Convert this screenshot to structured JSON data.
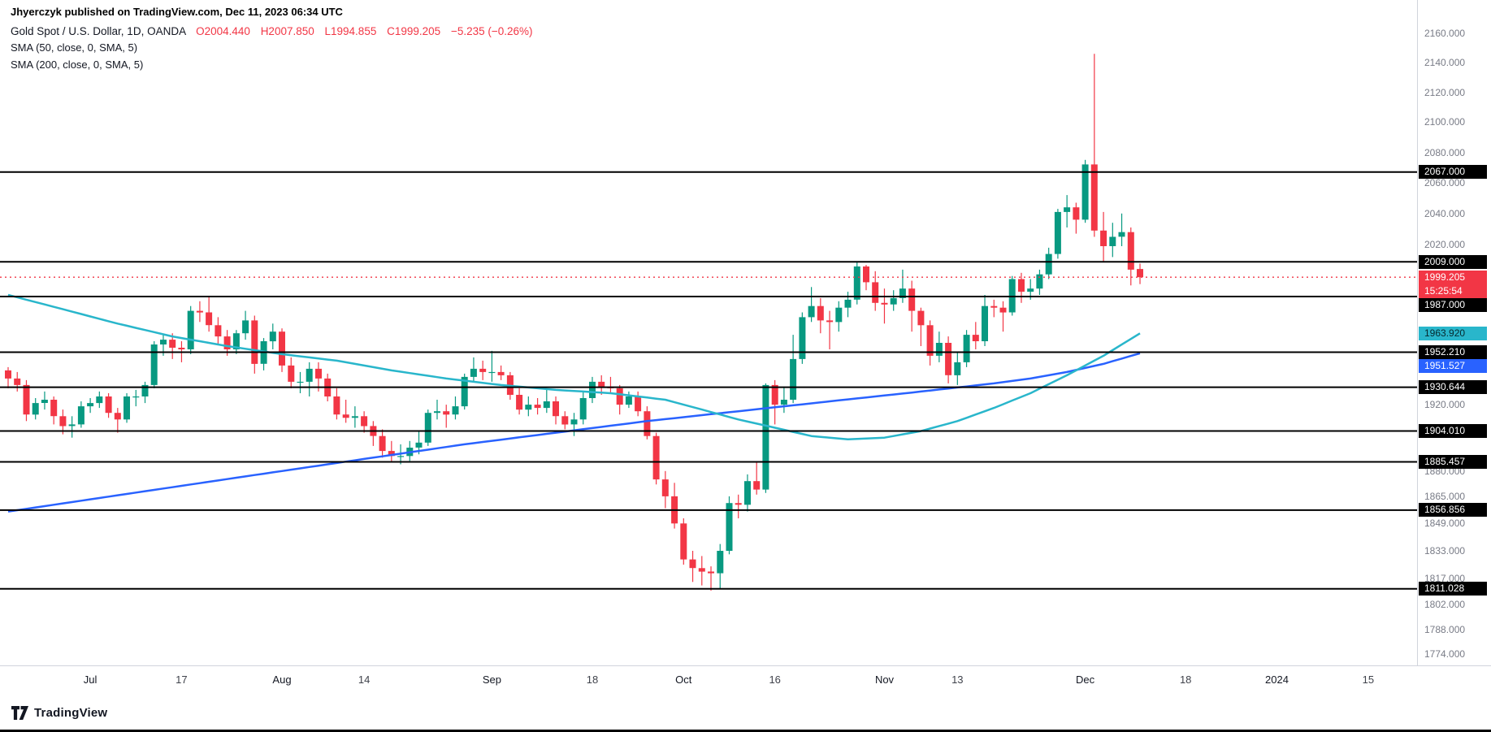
{
  "header": {
    "attribution": "Jhyerczyk published on TradingView.com, Dec 11, 2023 06:34 UTC",
    "symbol_title": "Gold Spot / U.S. Dollar, 1D, OANDA",
    "ohlc": {
      "open": "O2004.440",
      "high": "H2007.850",
      "low": "L1994.855",
      "close": "C1999.205",
      "change": "−5.235 (−0.26%)"
    },
    "indicators": [
      "SMA (50, close, 0, SMA, 5)",
      "SMA (200, close, 0, SMA, 5)"
    ]
  },
  "footer": {
    "brand": "TradingView"
  },
  "chart_data": {
    "type": "candlestick",
    "symbol": "Gold Spot / U.S. Dollar",
    "interval": "1D",
    "exchange": "OANDA",
    "colors": {
      "up": "#089981",
      "down": "#f23645",
      "level": "#000000",
      "current": "#f23645",
      "sma50": "#29b6cb",
      "sma200": "#2962ff",
      "axis_text": "#787b86"
    },
    "y_axis": {
      "scale": "log",
      "top_price": 2160,
      "bottom_price": 1774,
      "ticks": [
        "2160.000",
        "2140.000",
        "2120.000",
        "2100.000",
        "2080.000",
        "2060.000",
        "2040.000",
        "2020.000",
        "1920.000",
        "1880.000",
        "1865.000",
        "1849.000",
        "1833.000",
        "1817.000",
        "1802.000",
        "1788.000",
        "1774.000"
      ]
    },
    "x_axis": {
      "labels": [
        {
          "text": "Jul",
          "index": 9,
          "major": true
        },
        {
          "text": "17",
          "index": 19,
          "major": false
        },
        {
          "text": "Aug",
          "index": 30,
          "major": true
        },
        {
          "text": "14",
          "index": 39,
          "major": false
        },
        {
          "text": "Sep",
          "index": 53,
          "major": true
        },
        {
          "text": "18",
          "index": 64,
          "major": false
        },
        {
          "text": "Oct",
          "index": 74,
          "major": true
        },
        {
          "text": "16",
          "index": 84,
          "major": false
        },
        {
          "text": "Nov",
          "index": 96,
          "major": true
        },
        {
          "text": "13",
          "index": 104,
          "major": false
        },
        {
          "text": "Dec",
          "index": 118,
          "major": true
        },
        {
          "text": "18",
          "index": 129,
          "major": false
        },
        {
          "text": "2024",
          "index": 139,
          "major": true
        },
        {
          "text": "15",
          "index": 149,
          "major": false
        }
      ]
    },
    "levels": [
      "2067.000",
      "2009.000",
      "1987.000",
      "1952.210",
      "1930.644",
      "1904.010",
      "1885.457",
      "1856.856",
      "1811.028"
    ],
    "current_price": {
      "price": 1999.205,
      "label": "1999.205",
      "countdown": "15:25:54"
    },
    "sma50": {
      "label": "1963.920",
      "points": [
        [
          0,
          1988
        ],
        [
          6,
          1979
        ],
        [
          12,
          1970
        ],
        [
          18,
          1962
        ],
        [
          24,
          1956
        ],
        [
          30,
          1951
        ],
        [
          36,
          1947
        ],
        [
          42,
          1941
        ],
        [
          48,
          1936
        ],
        [
          54,
          1932
        ],
        [
          60,
          1929
        ],
        [
          66,
          1927
        ],
        [
          72,
          1923
        ],
        [
          76,
          1917
        ],
        [
          80,
          1911
        ],
        [
          84,
          1906
        ],
        [
          88,
          1901
        ],
        [
          92,
          1899
        ],
        [
          96,
          1900
        ],
        [
          100,
          1904
        ],
        [
          104,
          1910
        ],
        [
          108,
          1918
        ],
        [
          112,
          1927
        ],
        [
          116,
          1938
        ],
        [
          120,
          1950
        ],
        [
          124,
          1963.92
        ]
      ]
    },
    "sma200": {
      "label": "1951.527",
      "points": [
        [
          0,
          1856
        ],
        [
          10,
          1864
        ],
        [
          20,
          1872
        ],
        [
          30,
          1880
        ],
        [
          40,
          1888
        ],
        [
          50,
          1896
        ],
        [
          60,
          1903
        ],
        [
          70,
          1910
        ],
        [
          80,
          1916
        ],
        [
          90,
          1922
        ],
        [
          100,
          1928
        ],
        [
          108,
          1933
        ],
        [
          112,
          1936
        ],
        [
          116,
          1940
        ],
        [
          120,
          1945
        ],
        [
          124,
          1951.53
        ]
      ]
    },
    "ohlc": [
      [
        1941,
        1943,
        1930,
        1936
      ],
      [
        1936,
        1940,
        1928,
        1932
      ],
      [
        1932,
        1935,
        1910,
        1914
      ],
      [
        1914,
        1924,
        1911,
        1921
      ],
      [
        1921,
        1928,
        1917,
        1923
      ],
      [
        1923,
        1925,
        1908,
        1913
      ],
      [
        1913,
        1917,
        1902,
        1907
      ],
      [
        1907,
        1913,
        1900,
        1908
      ],
      [
        1908,
        1922,
        1906,
        1919
      ],
      [
        1919,
        1924,
        1915,
        1921
      ],
      [
        1921,
        1928,
        1918,
        1925
      ],
      [
        1925,
        1927,
        1912,
        1915
      ],
      [
        1915,
        1918,
        1903,
        1911
      ],
      [
        1911,
        1927,
        1909,
        1925
      ],
      [
        1925,
        1929,
        1919,
        1925
      ],
      [
        1925,
        1934,
        1921,
        1932
      ],
      [
        1932,
        1959,
        1930,
        1957
      ],
      [
        1957,
        1963,
        1950,
        1960
      ],
      [
        1960,
        1964,
        1948,
        1955
      ],
      [
        1955,
        1959,
        1946,
        1954
      ],
      [
        1954,
        1981,
        1951,
        1978
      ],
      [
        1978,
        1984,
        1971,
        1977
      ],
      [
        1977,
        1987,
        1965,
        1969
      ],
      [
        1969,
        1974,
        1957,
        1962
      ],
      [
        1962,
        1966,
        1950,
        1954
      ],
      [
        1954,
        1966,
        1951,
        1964
      ],
      [
        1964,
        1978,
        1960,
        1972
      ],
      [
        1972,
        1975,
        1939,
        1945
      ],
      [
        1945,
        1961,
        1941,
        1959
      ],
      [
        1959,
        1970,
        1954,
        1965
      ],
      [
        1965,
        1967,
        1940,
        1944
      ],
      [
        1944,
        1949,
        1930,
        1934
      ],
      [
        1934,
        1940,
        1927,
        1934
      ],
      [
        1934,
        1946,
        1925,
        1942
      ],
      [
        1942,
        1946,
        1928,
        1936
      ],
      [
        1936,
        1939,
        1922,
        1925
      ],
      [
        1925,
        1930,
        1911,
        1914
      ],
      [
        1914,
        1923,
        1909,
        1912
      ],
      [
        1912,
        1919,
        1906,
        1913
      ],
      [
        1913,
        1916,
        1903,
        1907
      ],
      [
        1907,
        1910,
        1895,
        1901
      ],
      [
        1901,
        1905,
        1888,
        1892
      ],
      [
        1892,
        1898,
        1885,
        1889
      ],
      [
        1889,
        1896,
        1884,
        1889
      ],
      [
        1889,
        1898,
        1886,
        1894
      ],
      [
        1894,
        1904,
        1890,
        1897
      ],
      [
        1897,
        1917,
        1895,
        1915
      ],
      [
        1915,
        1923,
        1911,
        1916
      ],
      [
        1916,
        1920,
        1906,
        1914
      ],
      [
        1914,
        1925,
        1911,
        1919
      ],
      [
        1919,
        1939,
        1917,
        1937
      ],
      [
        1937,
        1949,
        1934,
        1942
      ],
      [
        1942,
        1947,
        1935,
        1940
      ],
      [
        1940,
        1953,
        1934,
        1940
      ],
      [
        1940,
        1944,
        1935,
        1938
      ],
      [
        1938,
        1940,
        1923,
        1926
      ],
      [
        1926,
        1930,
        1914,
        1917
      ],
      [
        1917,
        1925,
        1913,
        1920
      ],
      [
        1920,
        1924,
        1914,
        1918
      ],
      [
        1918,
        1930,
        1915,
        1922
      ],
      [
        1922,
        1925,
        1908,
        1913
      ],
      [
        1913,
        1916,
        1905,
        1908
      ],
      [
        1908,
        1915,
        1901,
        1911
      ],
      [
        1911,
        1928,
        1908,
        1924
      ],
      [
        1924,
        1937,
        1921,
        1934
      ],
      [
        1934,
        1938,
        1926,
        1931
      ],
      [
        1931,
        1937,
        1927,
        1930
      ],
      [
        1930,
        1932,
        1914,
        1920
      ],
      [
        1920,
        1928,
        1918,
        1925
      ],
      [
        1925,
        1928,
        1913,
        1916
      ],
      [
        1916,
        1919,
        1899,
        1901
      ],
      [
        1901,
        1903,
        1872,
        1875
      ],
      [
        1875,
        1880,
        1858,
        1865
      ],
      [
        1865,
        1873,
        1846,
        1849
      ],
      [
        1849,
        1852,
        1825,
        1828
      ],
      [
        1828,
        1833,
        1815,
        1823
      ],
      [
        1823,
        1830,
        1813,
        1821
      ],
      [
        1821,
        1824,
        1810,
        1820
      ],
      [
        1820,
        1837,
        1811,
        1833
      ],
      [
        1833,
        1865,
        1831,
        1861
      ],
      [
        1861,
        1866,
        1852,
        1860
      ],
      [
        1860,
        1878,
        1856,
        1874
      ],
      [
        1874,
        1885,
        1866,
        1869
      ],
      [
        1869,
        1933,
        1867,
        1932
      ],
      [
        1932,
        1935,
        1908,
        1920
      ],
      [
        1920,
        1931,
        1915,
        1923
      ],
      [
        1923,
        1963,
        1921,
        1948
      ],
      [
        1948,
        1977,
        1945,
        1974
      ],
      [
        1974,
        1993,
        1971,
        1981
      ],
      [
        1981,
        1986,
        1964,
        1972
      ],
      [
        1972,
        1978,
        1954,
        1971
      ],
      [
        1971,
        1984,
        1965,
        1980
      ],
      [
        1980,
        1990,
        1974,
        1985
      ],
      [
        1985,
        2009,
        1982,
        2006
      ],
      [
        2006,
        2007,
        1991,
        1996
      ],
      [
        1996,
        2003,
        1978,
        1983
      ],
      [
        1983,
        1992,
        1970,
        1982
      ],
      [
        1982,
        1991,
        1978,
        1986
      ],
      [
        1986,
        2004,
        1983,
        1992
      ],
      [
        1992,
        1997,
        1965,
        1978
      ],
      [
        1978,
        1980,
        1956,
        1969
      ],
      [
        1969,
        1972,
        1944,
        1950
      ],
      [
        1950,
        1965,
        1946,
        1958
      ],
      [
        1958,
        1962,
        1933,
        1938
      ],
      [
        1938,
        1952,
        1932,
        1946
      ],
      [
        1946,
        1966,
        1943,
        1963
      ],
      [
        1963,
        1971,
        1954,
        1959
      ],
      [
        1959,
        1988,
        1956,
        1981
      ],
      [
        1981,
        1985,
        1974,
        1980
      ],
      [
        1980,
        1984,
        1965,
        1977
      ],
      [
        1977,
        2000,
        1975,
        1998
      ],
      [
        1998,
        2002,
        1983,
        1990
      ],
      [
        1990,
        1998,
        1985,
        1992
      ],
      [
        1992,
        2004,
        1988,
        2001
      ],
      [
        2001,
        2018,
        1998,
        2014
      ],
      [
        2014,
        2043,
        2011,
        2041
      ],
      [
        2041,
        2052,
        2031,
        2044
      ],
      [
        2044,
        2047,
        2027,
        2036
      ],
      [
        2036,
        2075,
        2034,
        2072
      ],
      [
        2072,
        2146,
        2025,
        2029
      ],
      [
        2029,
        2041,
        2009,
        2019
      ],
      [
        2019,
        2034,
        2012,
        2025
      ],
      [
        2025,
        2040,
        2019,
        2028
      ],
      [
        2028,
        2031,
        1994,
        2004
      ],
      [
        2004.44,
        2007.85,
        1994.855,
        1999.205
      ]
    ]
  }
}
